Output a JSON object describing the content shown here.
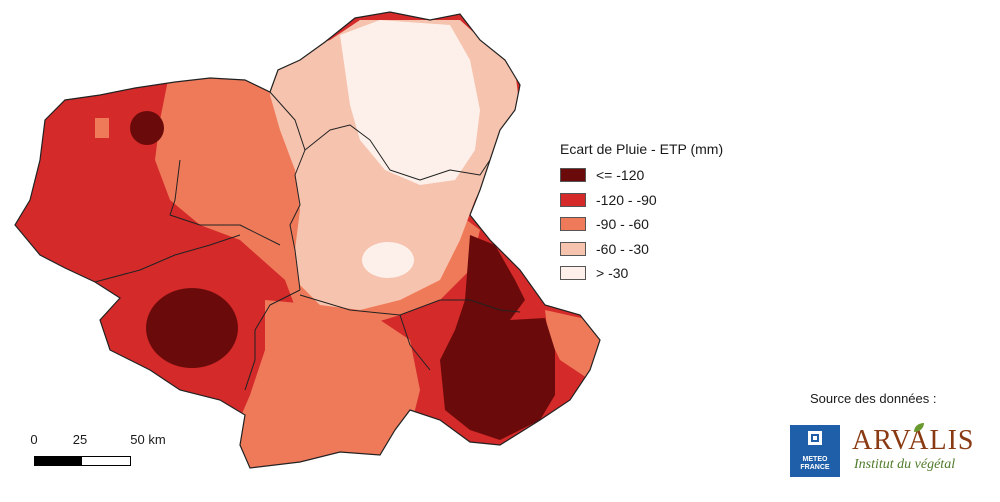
{
  "legend": {
    "title": "Ecart de Pluie - ETP (mm)",
    "items": [
      {
        "label": "<= -120",
        "color": "#6b0a0a"
      },
      {
        "label": "-120 - -90",
        "color": "#d42a2a"
      },
      {
        "label": "-90 - -60",
        "color": "#ef7a5a"
      },
      {
        "label": "-60 - -30",
        "color": "#f6c3ae"
      },
      {
        "label": "> -30",
        "color": "#fdf0ea"
      }
    ]
  },
  "scalebar": {
    "ticks": [
      "0",
      "25",
      "50 km"
    ]
  },
  "source": {
    "label": "Source des données :",
    "meteo_france_logo": "METEO\nFRANCE",
    "arvalis_name": "ARVALIS",
    "arvalis_subtitle": "Institut du végétal"
  }
}
